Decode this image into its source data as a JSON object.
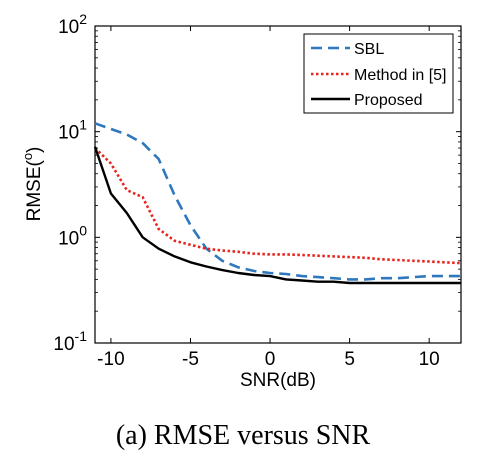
{
  "chart_data": {
    "type": "line",
    "title": "",
    "xlabel": "SNR(dB)",
    "ylabel": "RMSE(°)",
    "ylabel_main": "RMSE(",
    "ylabel_sup": "o",
    "ylabel_close": ")",
    "xlim": [
      -11,
      12
    ],
    "ylim": [
      0.1,
      100
    ],
    "yscale": "log",
    "grid": false,
    "legend_position": "top-right",
    "xticks": [
      -10,
      -5,
      0,
      5,
      10
    ],
    "xtick_labels": [
      "-10",
      "-5",
      "0",
      "5",
      "10"
    ],
    "yticks": [
      {
        "value": 0.1,
        "base": "10",
        "exp": "-1"
      },
      {
        "value": 1,
        "base": "10",
        "exp": "0"
      },
      {
        "value": 10,
        "base": "10",
        "exp": "1"
      },
      {
        "value": 100,
        "base": "10",
        "exp": "2"
      }
    ],
    "series": [
      {
        "name": "SBL",
        "color": "#2f78bd",
        "style": "dashed",
        "x": [
          -11,
          -10,
          -9,
          -8,
          -7,
          -6,
          -5,
          -4,
          -3,
          -2,
          -1,
          0,
          1,
          2,
          3,
          4,
          5,
          6,
          7,
          8,
          9,
          10,
          11,
          12
        ],
        "y": [
          12.0,
          10.6,
          9.4,
          7.8,
          5.5,
          2.5,
          1.3,
          0.78,
          0.6,
          0.52,
          0.48,
          0.46,
          0.45,
          0.43,
          0.42,
          0.41,
          0.4,
          0.4,
          0.41,
          0.41,
          0.42,
          0.43,
          0.43,
          0.43
        ]
      },
      {
        "name": "Method in [5]",
        "color": "#e8231b",
        "style": "dotted",
        "x": [
          -11,
          -10,
          -9,
          -8,
          -7,
          -6,
          -5,
          -4,
          -3,
          -2,
          -1,
          0,
          1,
          2,
          3,
          4,
          5,
          6,
          7,
          8,
          9,
          10,
          11,
          12
        ],
        "y": [
          7.0,
          5.0,
          2.8,
          2.4,
          1.2,
          0.93,
          0.85,
          0.78,
          0.75,
          0.73,
          0.7,
          0.69,
          0.69,
          0.68,
          0.67,
          0.66,
          0.65,
          0.64,
          0.62,
          0.61,
          0.6,
          0.59,
          0.58,
          0.57
        ]
      },
      {
        "name": "Proposed",
        "color": "#000000",
        "style": "solid",
        "x": [
          -11,
          -10,
          -9,
          -8,
          -7,
          -6,
          -5,
          -4,
          -3,
          -2,
          -1,
          0,
          1,
          2,
          3,
          4,
          5,
          6,
          7,
          8,
          9,
          10,
          11,
          12
        ],
        "y": [
          7.2,
          2.6,
          1.7,
          1.0,
          0.78,
          0.66,
          0.58,
          0.53,
          0.49,
          0.46,
          0.44,
          0.43,
          0.4,
          0.39,
          0.38,
          0.38,
          0.37,
          0.37,
          0.37,
          0.37,
          0.37,
          0.37,
          0.37,
          0.37
        ]
      }
    ]
  },
  "caption": "(a) RMSE versus SNR"
}
